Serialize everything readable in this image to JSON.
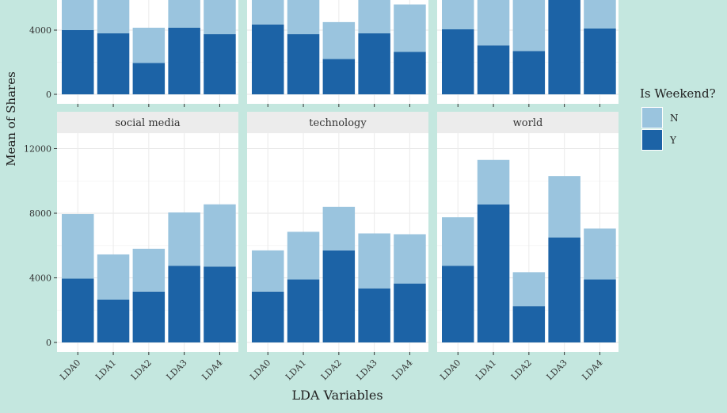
{
  "chart_data": {
    "type": "bar",
    "stacked": true,
    "xlabel": "LDA Variables",
    "ylabel": "Mean of Shares",
    "categories": [
      "LDA0",
      "LDA1",
      "LDA2",
      "LDA3",
      "LDA4"
    ],
    "y_ticks": [
      0,
      4000,
      8000,
      12000
    ],
    "legend": {
      "title": "Is Weekend?",
      "position": "right",
      "entries": [
        {
          "name": "N",
          "color": "#9ac4de"
        },
        {
          "name": "Y",
          "color": "#1c63a6"
        }
      ]
    },
    "grid": true,
    "facets": [
      {
        "title": "",
        "row": 0,
        "col": 0,
        "ylim": [
          0,
          5800
        ],
        "series": [
          {
            "name": "Y",
            "values": [
              4000,
              3800,
              1950,
              4150,
              3750
            ]
          },
          {
            "name": "N",
            "values": [
              2500,
              2500,
              2200,
              2200,
              2400
            ]
          }
        ]
      },
      {
        "title": "",
        "row": 0,
        "col": 1,
        "ylim": [
          0,
          5800
        ],
        "series": [
          {
            "name": "Y",
            "values": [
              4350,
              3750,
              2200,
              3800,
              2650
            ]
          },
          {
            "name": "N",
            "values": [
              1650,
              2600,
              2300,
              2800,
              2950
            ]
          }
        ]
      },
      {
        "title": "",
        "row": 0,
        "col": 2,
        "ylim": [
          0,
          5800
        ],
        "series": [
          {
            "name": "Y",
            "values": [
              4050,
              3050,
              2700,
              6800,
              4100
            ]
          },
          {
            "name": "N",
            "values": [
              2500,
              3000,
              3300,
              1200,
              2300
            ]
          }
        ]
      },
      {
        "title": "social media",
        "row": 1,
        "col": 0,
        "ylim": [
          0,
          14000
        ],
        "series": [
          {
            "name": "Y",
            "values": [
              3950,
              2650,
              3150,
              4750,
              4700
            ]
          },
          {
            "name": "N",
            "values": [
              4000,
              2800,
              2650,
              3300,
              3850
            ]
          }
        ]
      },
      {
        "title": "technology",
        "row": 1,
        "col": 1,
        "ylim": [
          0,
          14000
        ],
        "series": [
          {
            "name": "Y",
            "values": [
              3150,
              3900,
              5700,
              3350,
              3650
            ]
          },
          {
            "name": "N",
            "values": [
              2550,
              2950,
              2700,
              3400,
              3050
            ]
          }
        ]
      },
      {
        "title": "world",
        "row": 1,
        "col": 2,
        "ylim": [
          0,
          14000
        ],
        "series": [
          {
            "name": "Y",
            "values": [
              4750,
              8550,
              2250,
              6500,
              3900
            ]
          },
          {
            "name": "N",
            "values": [
              3000,
              2750,
              2100,
              3800,
              3150
            ]
          }
        ]
      }
    ]
  }
}
